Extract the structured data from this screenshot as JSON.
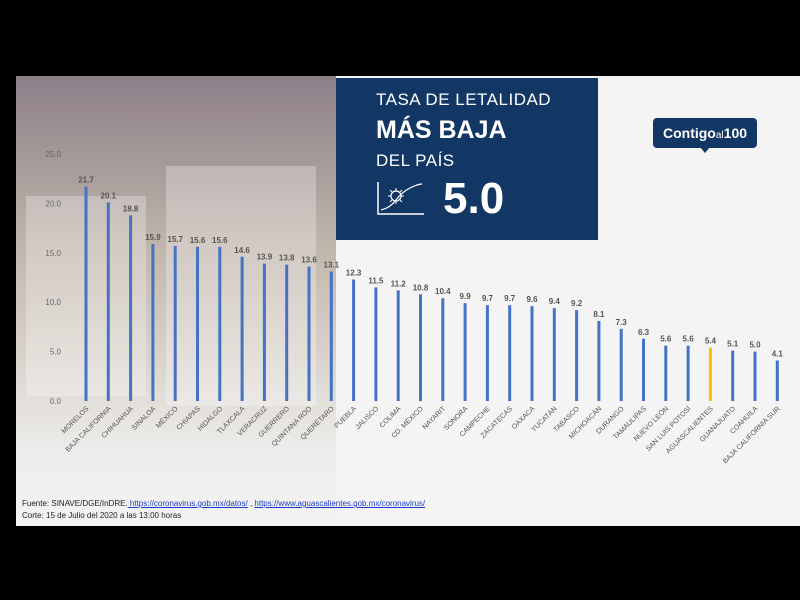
{
  "header": {
    "line1": "TASA DE LETALIDAD",
    "line2": "MÁS BAJA",
    "line3": "DEL PAÍS",
    "value": "5.0"
  },
  "logo": {
    "prefix": "Contigo",
    "mid": "al",
    "num": "100"
  },
  "footer": {
    "source_prefix": "Fuente: SINAVE/DGE/InDRE.",
    "link1": " https://coronavirus.gob.mx/datos/",
    "sep": " , ",
    "link2": "https://www.aguascalientes.gob.mx/coronavirus/",
    "corte": "Corte: 15 de Julio del 2020 a las 13:00 horas"
  },
  "colors": {
    "bar": "#4472c4",
    "highlight": "#ffc000",
    "box": "#133764"
  },
  "chart_data": {
    "type": "bar",
    "categories": [
      "MORELOS",
      "BAJA CALIFORNIA",
      "CHIHUAHUA",
      "SINALOA",
      "MÉXICO",
      "CHIAPAS",
      "HIDALGO",
      "TLAXCALA",
      "VERACRUZ",
      "GUERRERO",
      "QUINTANA ROO",
      "QUERÉTARO",
      "PUEBLA",
      "JALISCO",
      "COLIMA",
      "CD. MÉXICO",
      "NAYARIT",
      "SONORA",
      "CAMPECHE",
      "ZACATECAS",
      "OAXACA",
      "YUCATÁN",
      "TABASCO",
      "MICHOACÁN",
      "DURANGO",
      "TAMAULIPAS",
      "NUEVO LEÓN",
      "SAN LUIS POTOSÍ",
      "AGUASCALIENTES",
      "GUANAJUATO",
      "COAHUILA",
      "BAJA CALIFORNIA SUR"
    ],
    "values": [
      21.7,
      20.1,
      18.8,
      15.9,
      15.7,
      15.6,
      15.6,
      14.6,
      13.9,
      13.8,
      13.6,
      13.1,
      12.3,
      11.5,
      11.2,
      10.8,
      10.4,
      9.9,
      9.7,
      9.7,
      9.6,
      9.4,
      9.2,
      8.1,
      7.3,
      6.3,
      5.6,
      5.6,
      5.4,
      5.1,
      5.0,
      4.1
    ],
    "highlight_category": "AGUASCALIENTES",
    "yticks": [
      "0.0",
      "5.0",
      "10.0",
      "15.0",
      "20.0",
      "25.0"
    ],
    "ylim": [
      0,
      25
    ]
  }
}
